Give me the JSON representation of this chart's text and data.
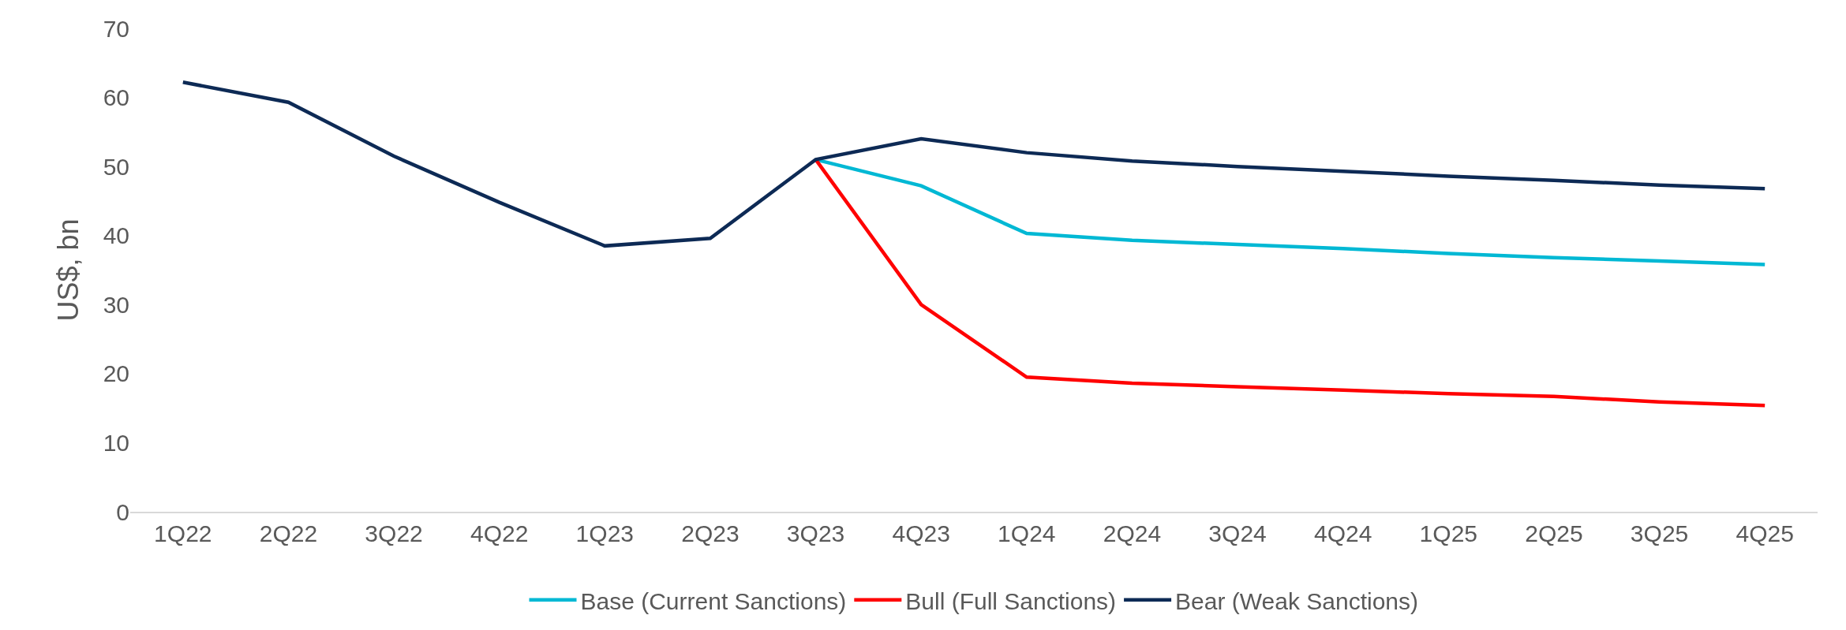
{
  "chart_data": {
    "type": "line",
    "ylabel": "US$, bn",
    "categories": [
      "1Q22",
      "2Q22",
      "3Q22",
      "4Q22",
      "1Q23",
      "2Q23",
      "3Q23",
      "4Q23",
      "1Q24",
      "2Q24",
      "3Q24",
      "4Q24",
      "1Q25",
      "2Q25",
      "3Q25",
      "4Q25"
    ],
    "series": [
      {
        "name": "Base (Current Sanctions)",
        "color": "#00b8d4",
        "values": [
          null,
          null,
          null,
          null,
          null,
          null,
          51.0,
          47.2,
          40.3,
          39.3,
          38.7,
          38.1,
          37.4,
          36.8,
          36.3,
          35.8
        ]
      },
      {
        "name": "Bull (Full Sanctions)",
        "color": "#ff0000",
        "values": [
          null,
          null,
          null,
          null,
          null,
          null,
          51.0,
          30.0,
          19.5,
          18.6,
          18.1,
          17.6,
          17.1,
          16.7,
          15.9,
          15.4
        ]
      },
      {
        "name": "Bear (Weak Sanctions)",
        "color": "#0d2a55",
        "values": [
          62.2,
          59.3,
          51.5,
          44.8,
          38.5,
          39.6,
          51.0,
          54.0,
          52.0,
          50.8,
          50.0,
          49.3,
          48.6,
          48.0,
          47.3,
          46.8
        ]
      }
    ],
    "ylim": [
      0,
      70
    ],
    "yticks": [
      0,
      10,
      20,
      30,
      40,
      50,
      60,
      70
    ],
    "grid": false,
    "legend": "bottom",
    "marker": "none",
    "line_style": "solid"
  }
}
